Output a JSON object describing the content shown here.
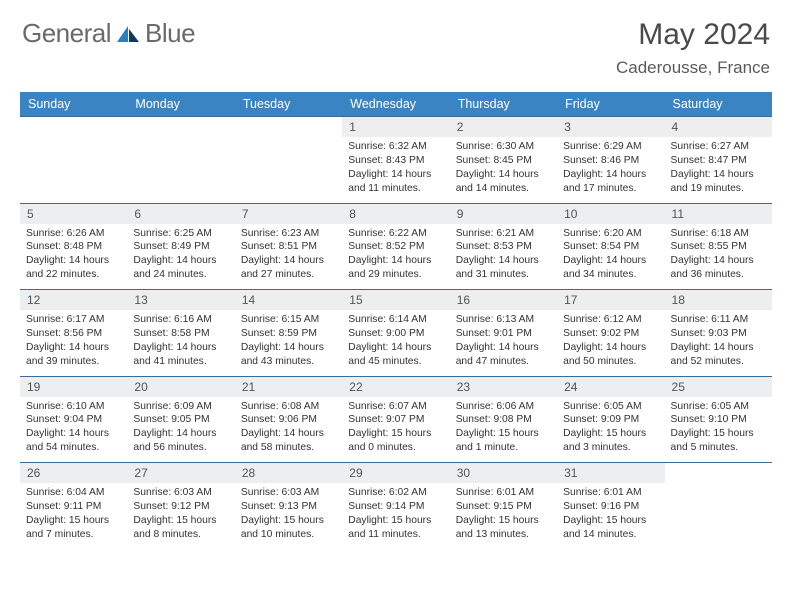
{
  "brand": {
    "word1": "General",
    "word2": "Blue"
  },
  "title": "May 2024",
  "location": "Caderousse, France",
  "colors": {
    "header_bg": "#3b84c4",
    "header_text": "#ffffff",
    "daynum_bg": "#eceeef",
    "border": "#3b6a99",
    "logo_blue": "#2a7fbf",
    "logo_dark": "#0d3a5c",
    "text_gray": "#6a6a6a"
  },
  "weekdays": [
    "Sunday",
    "Monday",
    "Tuesday",
    "Wednesday",
    "Thursday",
    "Friday",
    "Saturday"
  ],
  "weeks": [
    [
      {
        "blank": true
      },
      {
        "blank": true
      },
      {
        "blank": true
      },
      {
        "num": "1",
        "sunrise": "Sunrise: 6:32 AM",
        "sunset": "Sunset: 8:43 PM",
        "day1": "Daylight: 14 hours",
        "day2": "and 11 minutes."
      },
      {
        "num": "2",
        "sunrise": "Sunrise: 6:30 AM",
        "sunset": "Sunset: 8:45 PM",
        "day1": "Daylight: 14 hours",
        "day2": "and 14 minutes."
      },
      {
        "num": "3",
        "sunrise": "Sunrise: 6:29 AM",
        "sunset": "Sunset: 8:46 PM",
        "day1": "Daylight: 14 hours",
        "day2": "and 17 minutes."
      },
      {
        "num": "4",
        "sunrise": "Sunrise: 6:27 AM",
        "sunset": "Sunset: 8:47 PM",
        "day1": "Daylight: 14 hours",
        "day2": "and 19 minutes."
      }
    ],
    [
      {
        "num": "5",
        "sunrise": "Sunrise: 6:26 AM",
        "sunset": "Sunset: 8:48 PM",
        "day1": "Daylight: 14 hours",
        "day2": "and 22 minutes."
      },
      {
        "num": "6",
        "sunrise": "Sunrise: 6:25 AM",
        "sunset": "Sunset: 8:49 PM",
        "day1": "Daylight: 14 hours",
        "day2": "and 24 minutes."
      },
      {
        "num": "7",
        "sunrise": "Sunrise: 6:23 AM",
        "sunset": "Sunset: 8:51 PM",
        "day1": "Daylight: 14 hours",
        "day2": "and 27 minutes."
      },
      {
        "num": "8",
        "sunrise": "Sunrise: 6:22 AM",
        "sunset": "Sunset: 8:52 PM",
        "day1": "Daylight: 14 hours",
        "day2": "and 29 minutes."
      },
      {
        "num": "9",
        "sunrise": "Sunrise: 6:21 AM",
        "sunset": "Sunset: 8:53 PM",
        "day1": "Daylight: 14 hours",
        "day2": "and 31 minutes."
      },
      {
        "num": "10",
        "sunrise": "Sunrise: 6:20 AM",
        "sunset": "Sunset: 8:54 PM",
        "day1": "Daylight: 14 hours",
        "day2": "and 34 minutes."
      },
      {
        "num": "11",
        "sunrise": "Sunrise: 6:18 AM",
        "sunset": "Sunset: 8:55 PM",
        "day1": "Daylight: 14 hours",
        "day2": "and 36 minutes."
      }
    ],
    [
      {
        "num": "12",
        "sunrise": "Sunrise: 6:17 AM",
        "sunset": "Sunset: 8:56 PM",
        "day1": "Daylight: 14 hours",
        "day2": "and 39 minutes."
      },
      {
        "num": "13",
        "sunrise": "Sunrise: 6:16 AM",
        "sunset": "Sunset: 8:58 PM",
        "day1": "Daylight: 14 hours",
        "day2": "and 41 minutes."
      },
      {
        "num": "14",
        "sunrise": "Sunrise: 6:15 AM",
        "sunset": "Sunset: 8:59 PM",
        "day1": "Daylight: 14 hours",
        "day2": "and 43 minutes."
      },
      {
        "num": "15",
        "sunrise": "Sunrise: 6:14 AM",
        "sunset": "Sunset: 9:00 PM",
        "day1": "Daylight: 14 hours",
        "day2": "and 45 minutes."
      },
      {
        "num": "16",
        "sunrise": "Sunrise: 6:13 AM",
        "sunset": "Sunset: 9:01 PM",
        "day1": "Daylight: 14 hours",
        "day2": "and 47 minutes."
      },
      {
        "num": "17",
        "sunrise": "Sunrise: 6:12 AM",
        "sunset": "Sunset: 9:02 PM",
        "day1": "Daylight: 14 hours",
        "day2": "and 50 minutes."
      },
      {
        "num": "18",
        "sunrise": "Sunrise: 6:11 AM",
        "sunset": "Sunset: 9:03 PM",
        "day1": "Daylight: 14 hours",
        "day2": "and 52 minutes."
      }
    ],
    [
      {
        "num": "19",
        "sunrise": "Sunrise: 6:10 AM",
        "sunset": "Sunset: 9:04 PM",
        "day1": "Daylight: 14 hours",
        "day2": "and 54 minutes."
      },
      {
        "num": "20",
        "sunrise": "Sunrise: 6:09 AM",
        "sunset": "Sunset: 9:05 PM",
        "day1": "Daylight: 14 hours",
        "day2": "and 56 minutes."
      },
      {
        "num": "21",
        "sunrise": "Sunrise: 6:08 AM",
        "sunset": "Sunset: 9:06 PM",
        "day1": "Daylight: 14 hours",
        "day2": "and 58 minutes."
      },
      {
        "num": "22",
        "sunrise": "Sunrise: 6:07 AM",
        "sunset": "Sunset: 9:07 PM",
        "day1": "Daylight: 15 hours",
        "day2": "and 0 minutes."
      },
      {
        "num": "23",
        "sunrise": "Sunrise: 6:06 AM",
        "sunset": "Sunset: 9:08 PM",
        "day1": "Daylight: 15 hours",
        "day2": "and 1 minute."
      },
      {
        "num": "24",
        "sunrise": "Sunrise: 6:05 AM",
        "sunset": "Sunset: 9:09 PM",
        "day1": "Daylight: 15 hours",
        "day2": "and 3 minutes."
      },
      {
        "num": "25",
        "sunrise": "Sunrise: 6:05 AM",
        "sunset": "Sunset: 9:10 PM",
        "day1": "Daylight: 15 hours",
        "day2": "and 5 minutes."
      }
    ],
    [
      {
        "num": "26",
        "sunrise": "Sunrise: 6:04 AM",
        "sunset": "Sunset: 9:11 PM",
        "day1": "Daylight: 15 hours",
        "day2": "and 7 minutes."
      },
      {
        "num": "27",
        "sunrise": "Sunrise: 6:03 AM",
        "sunset": "Sunset: 9:12 PM",
        "day1": "Daylight: 15 hours",
        "day2": "and 8 minutes."
      },
      {
        "num": "28",
        "sunrise": "Sunrise: 6:03 AM",
        "sunset": "Sunset: 9:13 PM",
        "day1": "Daylight: 15 hours",
        "day2": "and 10 minutes."
      },
      {
        "num": "29",
        "sunrise": "Sunrise: 6:02 AM",
        "sunset": "Sunset: 9:14 PM",
        "day1": "Daylight: 15 hours",
        "day2": "and 11 minutes."
      },
      {
        "num": "30",
        "sunrise": "Sunrise: 6:01 AM",
        "sunset": "Sunset: 9:15 PM",
        "day1": "Daylight: 15 hours",
        "day2": "and 13 minutes."
      },
      {
        "num": "31",
        "sunrise": "Sunrise: 6:01 AM",
        "sunset": "Sunset: 9:16 PM",
        "day1": "Daylight: 15 hours",
        "day2": "and 14 minutes."
      },
      {
        "blank": true
      }
    ]
  ]
}
